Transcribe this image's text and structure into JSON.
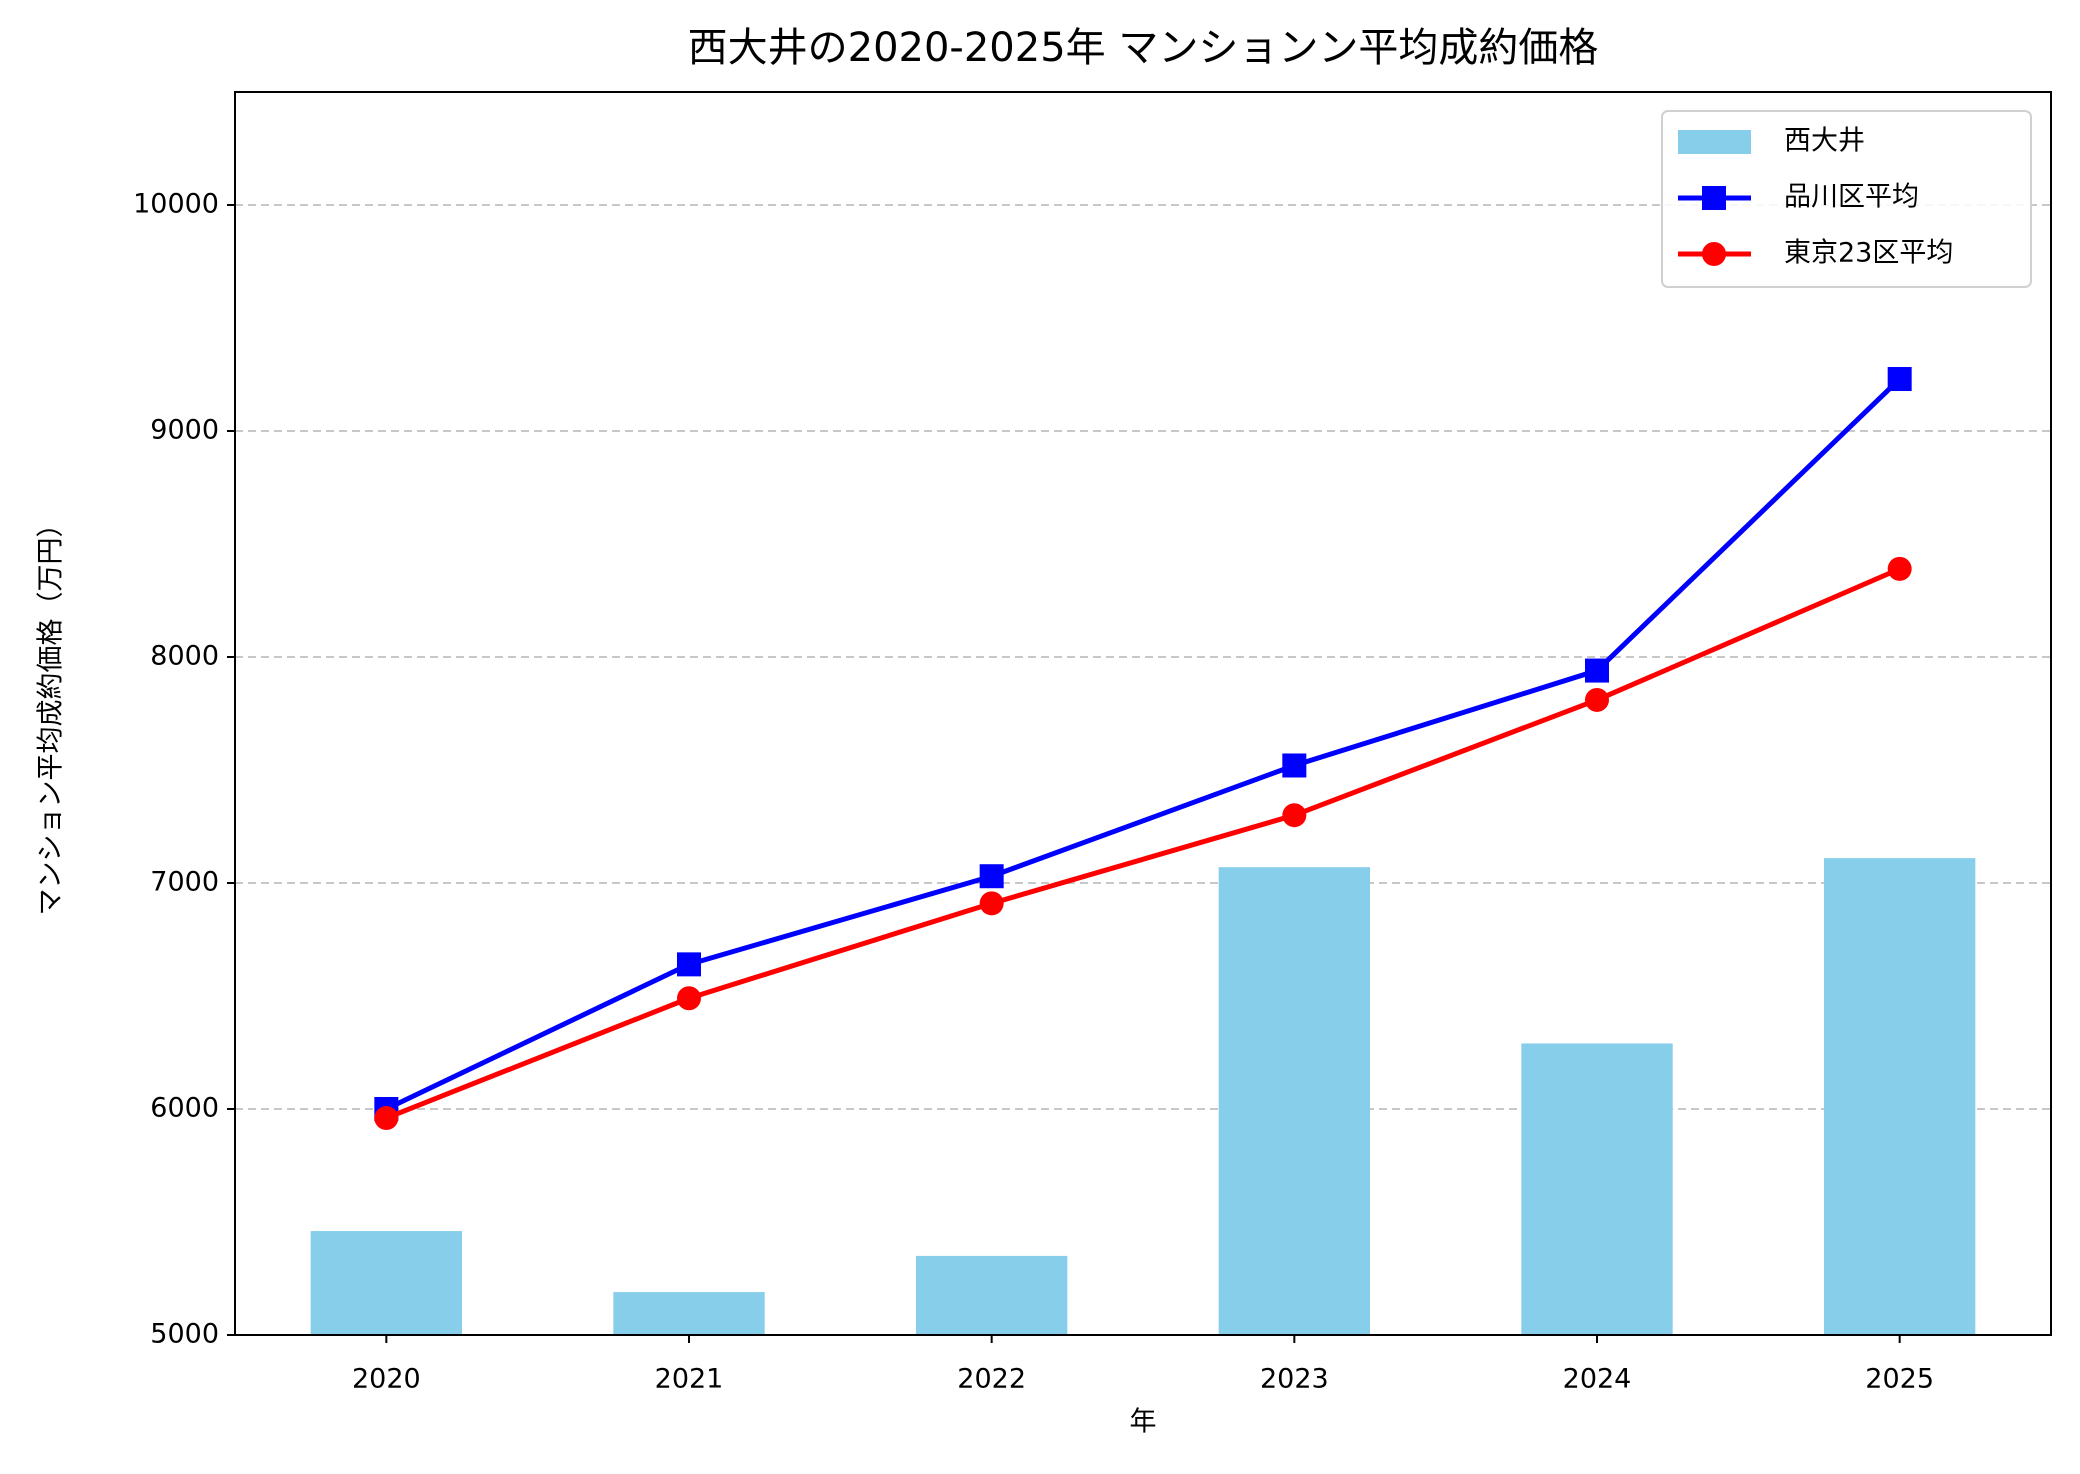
{
  "chart_data": {
    "type": "combo",
    "title": "西大井の2020-2025年 マンションン平均成約価格",
    "x_label": "年",
    "y_label": "マンション平均成約価格（万円）",
    "categories": [
      "2020",
      "2021",
      "2022",
      "2023",
      "2024",
      "2025"
    ],
    "series": [
      {
        "name": "西大井",
        "type": "bar",
        "color": "#87ceeb",
        "values": [
          5460,
          5190,
          5350,
          7070,
          6290,
          7110
        ]
      },
      {
        "name": "品川区平均",
        "type": "line",
        "marker": "square",
        "color": "#0000ff",
        "values": [
          6000,
          6640,
          7030,
          7520,
          7940,
          9230
        ]
      },
      {
        "name": "東京23区平均",
        "type": "line",
        "marker": "circle",
        "color": "#ff0000",
        "values": [
          5960,
          6490,
          6910,
          7300,
          7810,
          8390
        ]
      }
    ],
    "ylim": [
      5000,
      10500
    ],
    "yticks": [
      5000,
      6000,
      7000,
      8000,
      9000,
      10000
    ],
    "grid": true,
    "legend": "upper right"
  }
}
